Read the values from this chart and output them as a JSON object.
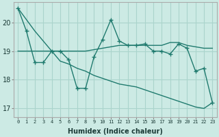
{
  "x": [
    0,
    1,
    2,
    3,
    4,
    5,
    6,
    7,
    8,
    9,
    10,
    11,
    12,
    13,
    14,
    15,
    16,
    17,
    18,
    19,
    20,
    21,
    22,
    23
  ],
  "y_main": [
    20.5,
    19.7,
    18.6,
    18.6,
    19.0,
    19.0,
    18.7,
    17.7,
    17.7,
    18.8,
    19.4,
    20.1,
    19.35,
    19.2,
    19.2,
    19.25,
    19.0,
    19.0,
    18.9,
    19.25,
    19.1,
    18.3,
    18.4,
    17.2
  ],
  "y_smooth_top": [
    19.0,
    19.0,
    19.0,
    19.0,
    19.0,
    19.0,
    19.0,
    19.0,
    19.0,
    19.05,
    19.1,
    19.15,
    19.2,
    19.2,
    19.2,
    19.2,
    19.2,
    19.2,
    19.3,
    19.3,
    19.2,
    19.15,
    19.1,
    19.1
  ],
  "y_smooth_bot": [
    20.5,
    20.1,
    19.7,
    19.35,
    19.0,
    18.65,
    18.55,
    18.4,
    18.3,
    18.15,
    18.05,
    17.95,
    17.85,
    17.8,
    17.75,
    17.65,
    17.55,
    17.45,
    17.35,
    17.25,
    17.15,
    17.05,
    17.0,
    17.2
  ],
  "xlabel": "Humidex (Indice chaleur)",
  "yticks": [
    17,
    18,
    19,
    20
  ],
  "xtick_labels": [
    "0",
    "1",
    "2",
    "3",
    "4",
    "5",
    "6",
    "7",
    "8",
    "9",
    "10",
    "11",
    "12",
    "13",
    "14",
    "15",
    "16",
    "17",
    "18",
    "19",
    "20",
    "21",
    "22",
    "23"
  ],
  "line_color": "#1f7a6e",
  "bg_color": "#cceae4",
  "grid_color": "#aad4cc",
  "marker": "+",
  "marker_size": 4,
  "linewidth": 1.0
}
